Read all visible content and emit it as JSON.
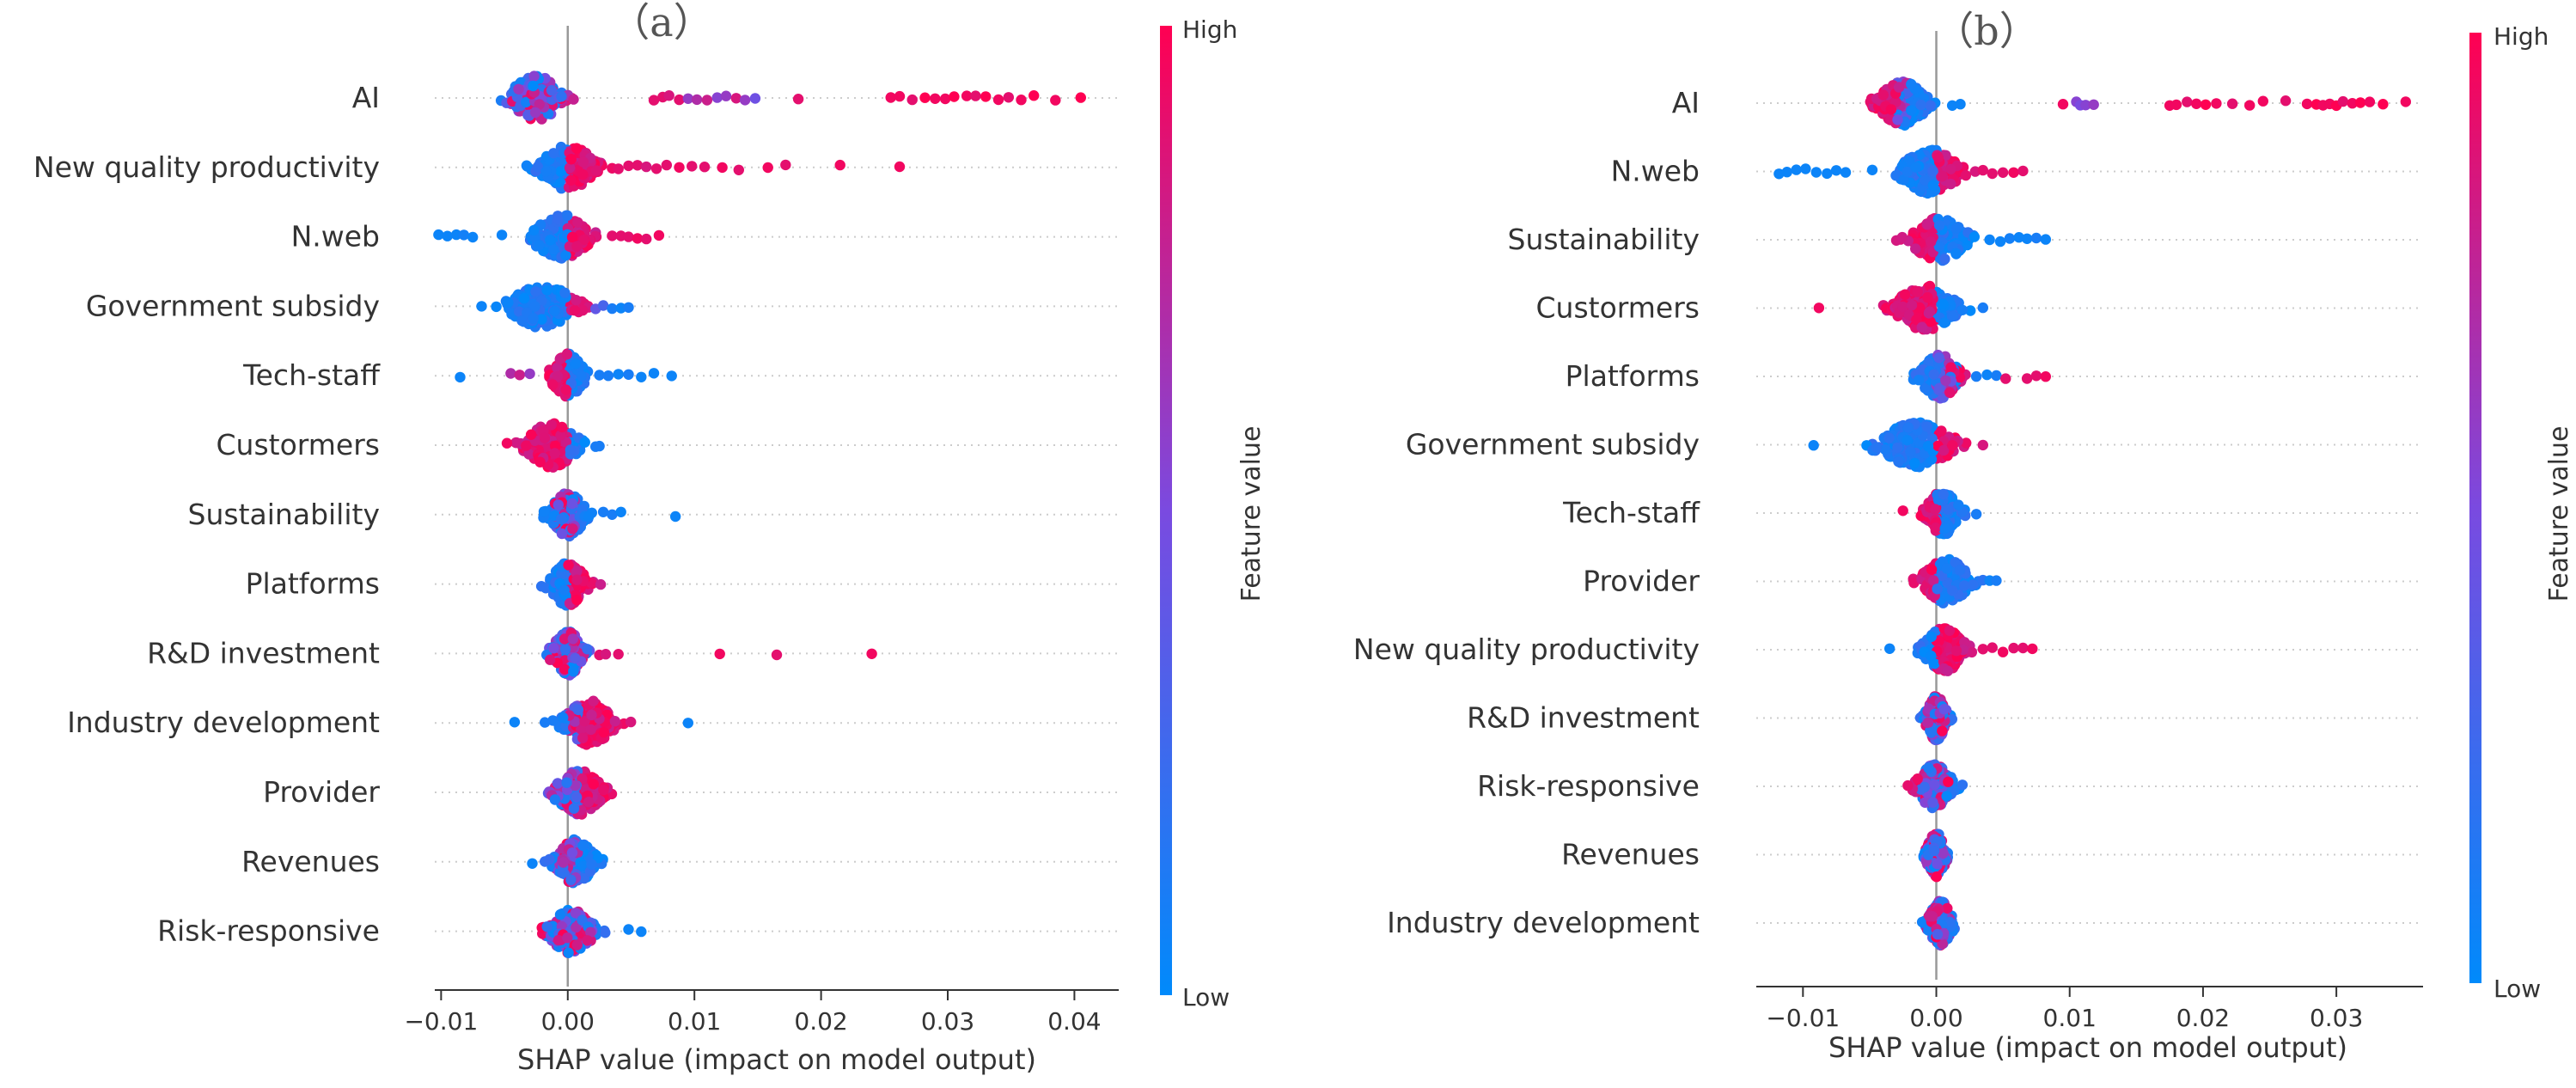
{
  "chart_data": [
    {
      "type": "scatter",
      "panel_label": "（a）",
      "xlabel": "SHAP value (impact on model output)",
      "xlim": [
        -0.0105,
        0.0435
      ],
      "xticks": [
        -0.01,
        0.0,
        0.01,
        0.02,
        0.03,
        0.04
      ],
      "xtick_labels": [
        "−0.01",
        "0.00",
        "0.01",
        "0.02",
        "0.03",
        "0.04"
      ],
      "colorbar": {
        "title": "Feature value",
        "high_label": "High",
        "low_label": "Low"
      },
      "features": [
        {
          "name": "AI",
          "core": [
            -0.0058,
            0.0008
          ],
          "low_end": [
            -0.006,
            0.0
          ],
          "high_end": [
            -0.006,
            0.0
          ],
          "outliers": [
            0.0068,
            0.0075,
            0.008,
            0.0088,
            0.0095,
            0.0102,
            0.011,
            0.0118,
            0.0125,
            0.0133,
            0.014,
            0.0148,
            0.0182,
            0.0255,
            0.0262,
            0.0272,
            0.0282,
            0.029,
            0.0298,
            0.0305,
            0.0315,
            0.0322,
            0.033,
            0.034,
            0.0348,
            0.0358,
            0.0368,
            0.0385,
            0.0405
          ],
          "outlier_feature": [
            0.9,
            0.9,
            0.85,
            0.9,
            0.6,
            0.7,
            0.8,
            0.55,
            0.6,
            0.85,
            0.6,
            0.45,
            0.9,
            0.95,
            0.95,
            0.9,
            1,
            0.95,
            0.95,
            1,
            0.95,
            0.9,
            1,
            0.95,
            0.9,
            0.95,
            1,
            0.95,
            1
          ]
        },
        {
          "name": "New quality productivity",
          "core": [
            -0.0035,
            0.0035
          ],
          "low_end": [
            -0.0035,
            0.0
          ],
          "high_end": [
            0.0,
            0.0035
          ],
          "outliers": [
            0.004,
            0.0048,
            0.0055,
            0.0062,
            0.007,
            0.0078,
            0.0088,
            0.0098,
            0.0108,
            0.0122,
            0.0135,
            0.0158,
            0.0172,
            0.0215,
            0.0262
          ],
          "outlier_feature": [
            0.9,
            0.9,
            0.9,
            0.85,
            0.9,
            0.9,
            0.95,
            0.9,
            0.9,
            0.95,
            0.9,
            0.95,
            0.9,
            0.95,
            0.95
          ]
        },
        {
          "name": "N.web",
          "core": [
            -0.004,
            0.003
          ],
          "low_end": [
            -0.004,
            0.0
          ],
          "high_end": [
            0.0,
            0.003
          ],
          "outliers": [
            -0.0102,
            -0.0095,
            -0.0088,
            -0.0082,
            -0.0075,
            -0.0052,
            0.0035,
            0.0042,
            0.0048,
            0.0055,
            0.0062,
            0.0072
          ],
          "outlier_feature": [
            0.05,
            0.05,
            0.05,
            0.08,
            0.05,
            0.05,
            0.9,
            0.9,
            0.9,
            0.95,
            0.9,
            0.95
          ]
        },
        {
          "name": "Government subsidy",
          "core": [
            -0.006,
            0.002
          ],
          "low_end": [
            -0.006,
            0.0
          ],
          "high_end": [
            0.0,
            0.002
          ],
          "outliers": [
            -0.0068,
            0.0022,
            0.0028,
            0.0035,
            0.0042,
            0.0048
          ],
          "outlier_feature": [
            0.05,
            0.4,
            0.3,
            0.1,
            0.05,
            0.1
          ]
        },
        {
          "name": "Tech-staff",
          "core": [
            -0.002,
            0.002
          ],
          "low_end": [
            0.0,
            0.002
          ],
          "high_end": [
            -0.002,
            0.0
          ],
          "outliers": [
            -0.0085,
            -0.0045,
            -0.0038,
            -0.003,
            0.0025,
            0.0032,
            0.004,
            0.0048,
            0.0058,
            0.0068,
            0.0082
          ],
          "outlier_feature": [
            0.05,
            0.7,
            0.8,
            0.6,
            0.1,
            0.1,
            0.05,
            0.1,
            0.05,
            0.05,
            0.05
          ]
        },
        {
          "name": "Custormers",
          "core": [
            -0.0045,
            0.002
          ],
          "low_end": [
            0.0,
            0.002
          ],
          "high_end": [
            -0.0045,
            0.0
          ],
          "outliers": [
            -0.0048,
            0.0022,
            0.0025
          ],
          "outlier_feature": [
            0.95,
            0.1,
            0.1
          ]
        },
        {
          "name": "Sustainability",
          "core": [
            -0.0022,
            0.0022
          ],
          "low_end": [
            -0.002,
            0.002
          ],
          "high_end": [
            -0.001,
            0.001
          ],
          "outliers": [
            0.0028,
            0.0035,
            0.0042,
            0.0085
          ],
          "outlier_feature": [
            0.1,
            0.1,
            0.05,
            0.05
          ]
        },
        {
          "name": "Platforms",
          "core": [
            -0.0022,
            0.0022
          ],
          "low_end": [
            -0.0022,
            0.0
          ],
          "high_end": [
            0.0,
            0.0022
          ],
          "outliers": [
            0.0026
          ],
          "outlier_feature": [
            0.8
          ]
        },
        {
          "name": "R&D investment",
          "core": [
            -0.002,
            0.002
          ],
          "low_end": [
            -0.002,
            0.002
          ],
          "high_end": [
            -0.002,
            0.002
          ],
          "outliers": [
            0.0025,
            0.003,
            0.004,
            0.012,
            0.0165,
            0.024
          ],
          "outlier_feature": [
            0.9,
            0.85,
            0.9,
            0.95,
            0.9,
            0.95
          ]
        },
        {
          "name": "Industry development",
          "core": [
            -0.0015,
            0.005
          ],
          "low_end": [
            -0.0015,
            0.001
          ],
          "high_end": [
            0.0,
            0.005
          ],
          "outliers": [
            -0.0042,
            -0.0018,
            0.0095
          ],
          "outlier_feature": [
            0.05,
            0.1,
            0.05
          ]
        },
        {
          "name": "Provider",
          "core": [
            -0.002,
            0.0038
          ],
          "low_end": [
            -0.002,
            0.001
          ],
          "high_end": [
            -0.002,
            0.0038
          ],
          "outliers": [],
          "outlier_feature": []
        },
        {
          "name": "Revenues",
          "core": [
            -0.0018,
            0.003
          ],
          "low_end": [
            -0.0018,
            0.003
          ],
          "high_end": [
            -0.001,
            0.001
          ],
          "outliers": [
            -0.0028
          ],
          "outlier_feature": [
            0.05
          ]
        },
        {
          "name": "Risk-responsive",
          "core": [
            -0.0025,
            0.003
          ],
          "low_end": [
            -0.002,
            0.003
          ],
          "high_end": [
            -0.0025,
            0.002
          ],
          "outliers": [
            0.0048,
            0.0058
          ],
          "outlier_feature": [
            0.05,
            0.05
          ]
        }
      ]
    },
    {
      "type": "scatter",
      "panel_label": "（b）",
      "xlabel": "SHAP value (impact on model output)",
      "xlim": [
        -0.0135,
        0.0365
      ],
      "xticks": [
        -0.01,
        0.0,
        0.01,
        0.02,
        0.03
      ],
      "xtick_labels": [
        "−0.01",
        "0.00",
        "0.01",
        "0.02",
        "0.03"
      ],
      "colorbar": {
        "title": "Feature value",
        "high_label": "High",
        "low_label": "Low"
      },
      "features": [
        {
          "name": "AI",
          "core": [
            -0.0055,
            0.0005
          ],
          "low_end": [
            -0.003,
            0.0005
          ],
          "high_end": [
            -0.0055,
            -0.002
          ],
          "outliers": [
            0.0012,
            0.0018,
            0.0095,
            0.0105,
            0.0108,
            0.0112,
            0.0118,
            0.0175,
            0.018,
            0.0188,
            0.0195,
            0.0202,
            0.021,
            0.0222,
            0.0235,
            0.0245,
            0.0262,
            0.0278,
            0.0285,
            0.029,
            0.0295,
            0.03,
            0.0305,
            0.0312,
            0.0318,
            0.0325,
            0.0335,
            0.0352
          ],
          "outlier_feature": [
            0.05,
            0.05,
            0.95,
            0.55,
            0.5,
            0.55,
            0.6,
            0.95,
            0.95,
            0.9,
            0.95,
            1,
            0.95,
            0.9,
            0.95,
            0.95,
            0.9,
            0.95,
            1,
            0.95,
            0.95,
            1,
            0.9,
            0.95,
            1,
            0.95,
            1,
            0.95
          ]
        },
        {
          "name": "N.web",
          "core": [
            -0.004,
            0.003
          ],
          "low_end": [
            -0.004,
            0.0
          ],
          "high_end": [
            0.0,
            0.003
          ],
          "outliers": [
            -0.0118,
            -0.0112,
            -0.0105,
            -0.0098,
            -0.009,
            -0.0082,
            -0.0075,
            -0.0068,
            -0.0048,
            0.0035,
            0.0042,
            0.005,
            0.0058,
            0.0065
          ],
          "outlier_feature": [
            0.05,
            0.05,
            0.05,
            0.05,
            0.05,
            0.05,
            0.05,
            0.05,
            0.05,
            0.9,
            0.9,
            0.9,
            0.95,
            0.9
          ]
        },
        {
          "name": "Sustainability",
          "core": [
            -0.003,
            0.0035
          ],
          "low_end": [
            0.0,
            0.0035
          ],
          "high_end": [
            -0.003,
            0.0
          ],
          "outliers": [
            0.004,
            0.0048,
            0.0055,
            0.0062,
            0.0068,
            0.0075,
            0.0082
          ],
          "outlier_feature": [
            0.05,
            0.05,
            0.08,
            0.05,
            0.05,
            0.1,
            0.05
          ]
        },
        {
          "name": "Custormers",
          "core": [
            -0.0045,
            0.003
          ],
          "low_end": [
            0.0,
            0.003
          ],
          "high_end": [
            -0.0045,
            0.0
          ],
          "outliers": [
            -0.0088,
            0.0035
          ],
          "outlier_feature": [
            0.95,
            0.1
          ]
        },
        {
          "name": "Platforms",
          "core": [
            -0.002,
            0.0025
          ],
          "low_end": [
            -0.002,
            0.0015
          ],
          "high_end": [
            0.0,
            0.0025
          ],
          "outliers": [
            0.003,
            0.0038,
            0.0045,
            0.0052,
            0.0068,
            0.0075,
            0.0082
          ],
          "outlier_feature": [
            0.1,
            0.05,
            0.1,
            0.9,
            0.9,
            0.9,
            0.95
          ]
        },
        {
          "name": "Government subsidy",
          "core": [
            -0.006,
            0.003
          ],
          "low_end": [
            -0.006,
            0.0
          ],
          "high_end": [
            0.0,
            0.003
          ],
          "outliers": [
            -0.0092,
            0.0035
          ],
          "outlier_feature": [
            0.05,
            0.85
          ]
        },
        {
          "name": "Tech-staff",
          "core": [
            -0.0015,
            0.0025
          ],
          "low_end": [
            0.0,
            0.0025
          ],
          "high_end": [
            -0.0015,
            0.0
          ],
          "outliers": [
            -0.0025,
            0.003
          ],
          "outlier_feature": [
            0.95,
            0.1
          ]
        },
        {
          "name": "Provider",
          "core": [
            -0.002,
            0.0035
          ],
          "low_end": [
            0.0,
            0.0035
          ],
          "high_end": [
            -0.002,
            0.0
          ],
          "outliers": [
            0.004,
            0.0045
          ],
          "outlier_feature": [
            0.05,
            0.1
          ]
        },
        {
          "name": "New quality productivity",
          "core": [
            -0.0018,
            0.003
          ],
          "low_end": [
            -0.0018,
            0.0
          ],
          "high_end": [
            0.0,
            0.003
          ],
          "outliers": [
            -0.0035,
            0.0035,
            0.0042,
            0.005,
            0.0058,
            0.0065,
            0.0072
          ],
          "outlier_feature": [
            0.05,
            0.9,
            0.9,
            0.95,
            0.9,
            0.9,
            0.95
          ]
        },
        {
          "name": "R&D investment",
          "core": [
            -0.0012,
            0.0012
          ],
          "low_end": [
            -0.0012,
            0.0012
          ],
          "high_end": [
            -0.0008,
            0.0008
          ],
          "outliers": [],
          "outlier_feature": []
        },
        {
          "name": "Risk-responsive",
          "core": [
            -0.0022,
            0.002
          ],
          "low_end": [
            -0.0012,
            0.002
          ],
          "high_end": [
            -0.0022,
            0.001
          ],
          "outliers": [],
          "outlier_feature": []
        },
        {
          "name": "Revenues",
          "core": [
            -0.0012,
            0.0012
          ],
          "low_end": [
            -0.0012,
            0.0012
          ],
          "high_end": [
            -0.0008,
            0.0008
          ],
          "outliers": [],
          "outlier_feature": []
        },
        {
          "name": "Industry development",
          "core": [
            -0.0012,
            0.0018
          ],
          "low_end": [
            -0.0012,
            0.0018
          ],
          "high_end": [
            -0.0008,
            0.001
          ],
          "outliers": [],
          "outlier_feature": []
        }
      ]
    }
  ],
  "colors": {
    "low": "#008afb",
    "high": "#ff0052",
    "axis": "#333333",
    "grid": "#cccccc",
    "zero_line": "#999999"
  }
}
